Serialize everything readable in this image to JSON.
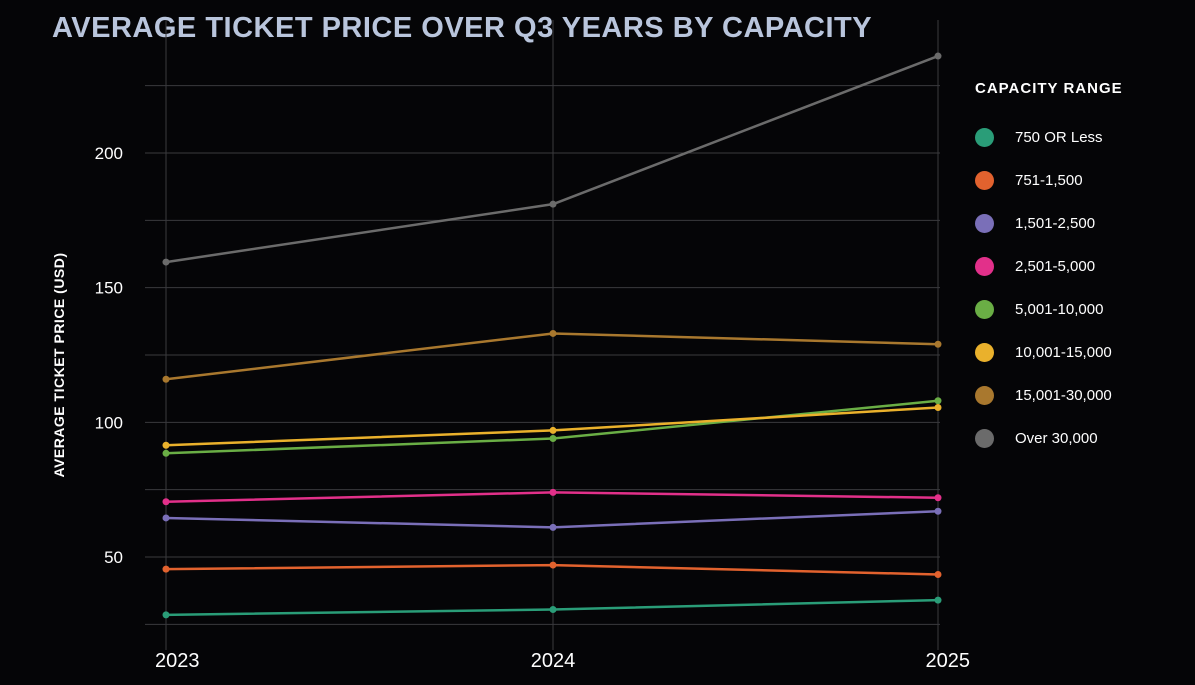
{
  "chart_data": {
    "type": "line",
    "title": "AVERAGE TICKET PRICE OVER Q3 YEARS BY CAPACITY",
    "xlabel": "",
    "ylabel": "AVERAGE TICKET PRICE (USD)",
    "x": [
      "2023",
      "2024",
      "2025"
    ],
    "yticks": [
      50,
      100,
      150,
      200
    ],
    "ylim": [
      25,
      238
    ],
    "legend_title": "CAPACITY RANGE",
    "legend_position": "right",
    "series": [
      {
        "name": "750 OR Less",
        "color": "#2a9d78",
        "values": [
          28.5,
          30.5,
          34
        ]
      },
      {
        "name": "751-1,500",
        "color": "#e2622e",
        "values": [
          45.5,
          47,
          43.5
        ]
      },
      {
        "name": "1,501-2,500",
        "color": "#7a6fb8",
        "values": [
          64.5,
          61,
          67
        ]
      },
      {
        "name": "2,501-5,000",
        "color": "#e2308a",
        "values": [
          70.5,
          74,
          72
        ]
      },
      {
        "name": "5,001-10,000",
        "color": "#6aae45",
        "values": [
          88.5,
          94,
          108
        ]
      },
      {
        "name": "10,001-15,000",
        "color": "#eab12c",
        "values": [
          91.5,
          97,
          105.5
        ]
      },
      {
        "name": "15,001-30,000",
        "color": "#a9782e",
        "values": [
          116,
          133,
          129
        ]
      },
      {
        "name": "Over 30,000",
        "color": "#6b6b6b",
        "values": [
          159.5,
          181,
          236
        ]
      }
    ]
  }
}
